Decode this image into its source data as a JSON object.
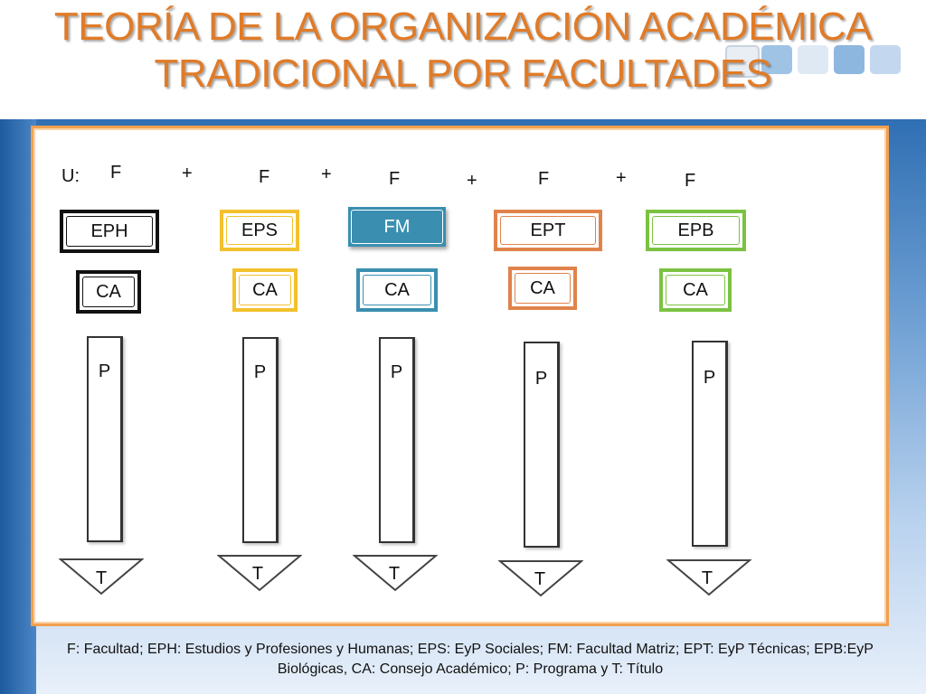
{
  "title": {
    "line1": "TEORÍA DE LA ORGANIZACIÓN ACADÉMICA",
    "line2": "TRADICIONAL POR FACULTADES"
  },
  "colors": {
    "title": "#e07b28",
    "panel_border": "#f0a04f",
    "eph": "#111111",
    "eps": "#f2c12e",
    "fm": "#3a8fb0",
    "ept": "#e0834b",
    "epb": "#7cc242"
  },
  "formula": {
    "u_label": "U:",
    "f_labels": [
      "F",
      "F",
      "F",
      "F",
      "F"
    ],
    "plus_labels": [
      "+",
      "+",
      "+",
      "+"
    ]
  },
  "faculties": [
    {
      "name": "EPH",
      "council": "CA",
      "program": "P",
      "title": "T"
    },
    {
      "name": "EPS",
      "council": "CA",
      "program": "P",
      "title": "T"
    },
    {
      "name": "FM",
      "council": "CA",
      "program": "P",
      "title": "T"
    },
    {
      "name": "EPT",
      "council": "CA",
      "program": "P",
      "title": "T"
    },
    {
      "name": "EPB",
      "council": "CA",
      "program": "P",
      "title": "T"
    }
  ],
  "caption": {
    "line1": "F: Facultad; EPH: Estudios y Profesiones y Humanas; EPS: EyP Sociales; FM: Facultad Matriz; EPT: EyP Técnicas; EPB:EyP",
    "line2": "Biológicas, CA: Consejo Académico; P: Programa y T: Título"
  }
}
